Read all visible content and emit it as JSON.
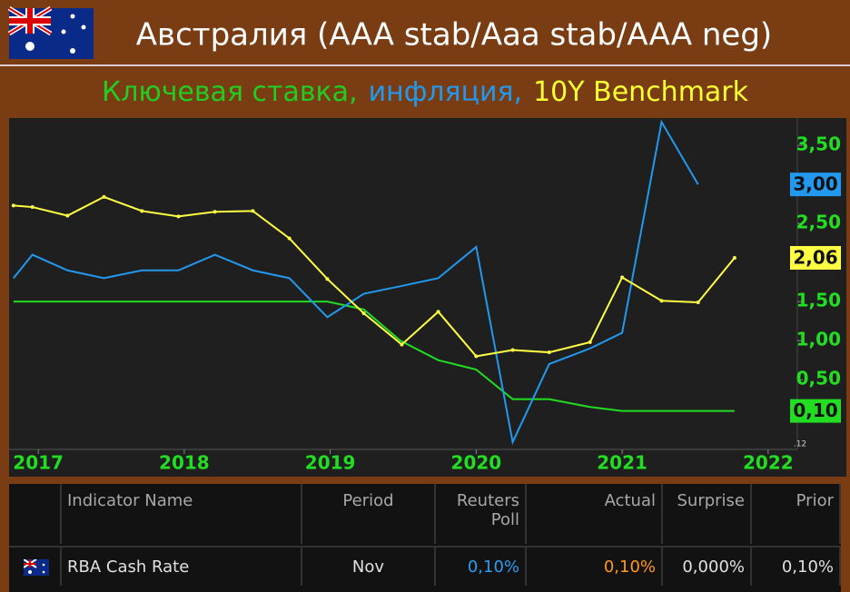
{
  "chart_data": {
    "type": "line",
    "title": "Австралия (AAA stab/Aaa stab/AAA neg)",
    "subtitle_parts": [
      {
        "text": "Ключевая ставка,",
        "color": "#22cc22"
      },
      {
        "text": "инфляция,",
        "color": "#2299ee"
      },
      {
        "text": "10Y Benchmark",
        "color": "#ffff33"
      }
    ],
    "xlim": [
      2016.8,
      2022.2
    ],
    "xticks": [
      2017,
      2018,
      2019,
      2020,
      2021,
      2022
    ],
    "ylim": [
      -0.37,
      3.85
    ],
    "yticks": [
      {
        "value": 0.5,
        "label": "0,50"
      },
      {
        "value": 1.0,
        "label": "1,00"
      },
      {
        "value": 1.5,
        "label": "1,50"
      },
      {
        "value": 2.5,
        "label": "2,50"
      },
      {
        "value": 3.5,
        "label": "3,50"
      }
    ],
    "annotations": [
      ".12"
    ],
    "series": [
      {
        "name": "Ключевая ставка",
        "color": "#22dd22",
        "markers": false,
        "end_label": "0,10",
        "x": [
          2016.83,
          2018.98,
          2019.23,
          2019.48,
          2019.74,
          2020.0,
          2020.25,
          2020.5,
          2020.78,
          2021.0,
          2021.77
        ],
        "values": [
          1.5,
          1.5,
          1.4,
          1.0,
          0.75,
          0.63,
          0.25,
          0.25,
          0.15,
          0.1,
          0.1
        ]
      },
      {
        "name": "инфляция",
        "color": "#2299ee",
        "markers": false,
        "end_label": "3,00",
        "x": [
          2016.83,
          2016.96,
          2017.2,
          2017.45,
          2017.71,
          2017.96,
          2018.21,
          2018.47,
          2018.72,
          2018.98,
          2019.23,
          2019.49,
          2019.74,
          2020.0,
          2020.25,
          2020.5,
          2020.78,
          2021.0,
          2021.27,
          2021.52
        ],
        "values": [
          1.8,
          2.1,
          1.9,
          1.8,
          1.9,
          1.9,
          2.1,
          1.9,
          1.8,
          1.3,
          1.6,
          1.7,
          1.8,
          2.2,
          -0.3,
          0.7,
          0.9,
          1.1,
          3.8,
          3.0
        ]
      },
      {
        "name": "10Y Benchmark",
        "color": "#ffff44",
        "markers": true,
        "end_label": "2,06",
        "x": [
          2016.83,
          2016.96,
          2017.2,
          2017.45,
          2017.71,
          2017.96,
          2018.21,
          2018.47,
          2018.72,
          2018.98,
          2019.23,
          2019.49,
          2019.74,
          2020.0,
          2020.25,
          2020.5,
          2020.78,
          2021.0,
          2021.27,
          2021.52,
          2021.77
        ],
        "values": [
          2.73,
          2.71,
          2.6,
          2.84,
          2.66,
          2.59,
          2.65,
          2.66,
          2.31,
          1.79,
          1.35,
          0.95,
          1.37,
          0.8,
          0.88,
          0.85,
          0.98,
          1.81,
          1.51,
          1.49,
          2.06
        ]
      }
    ]
  },
  "table": {
    "header": [
      "Indicator Name",
      "Period",
      "Reuters Poll",
      "Actual",
      "Surprise",
      "Prior"
    ],
    "rows": [
      [
        "RBA Cash Rate",
        "Nov",
        "0,10%",
        "0,10%",
        "0,000%",
        "0,10%"
      ]
    ]
  }
}
